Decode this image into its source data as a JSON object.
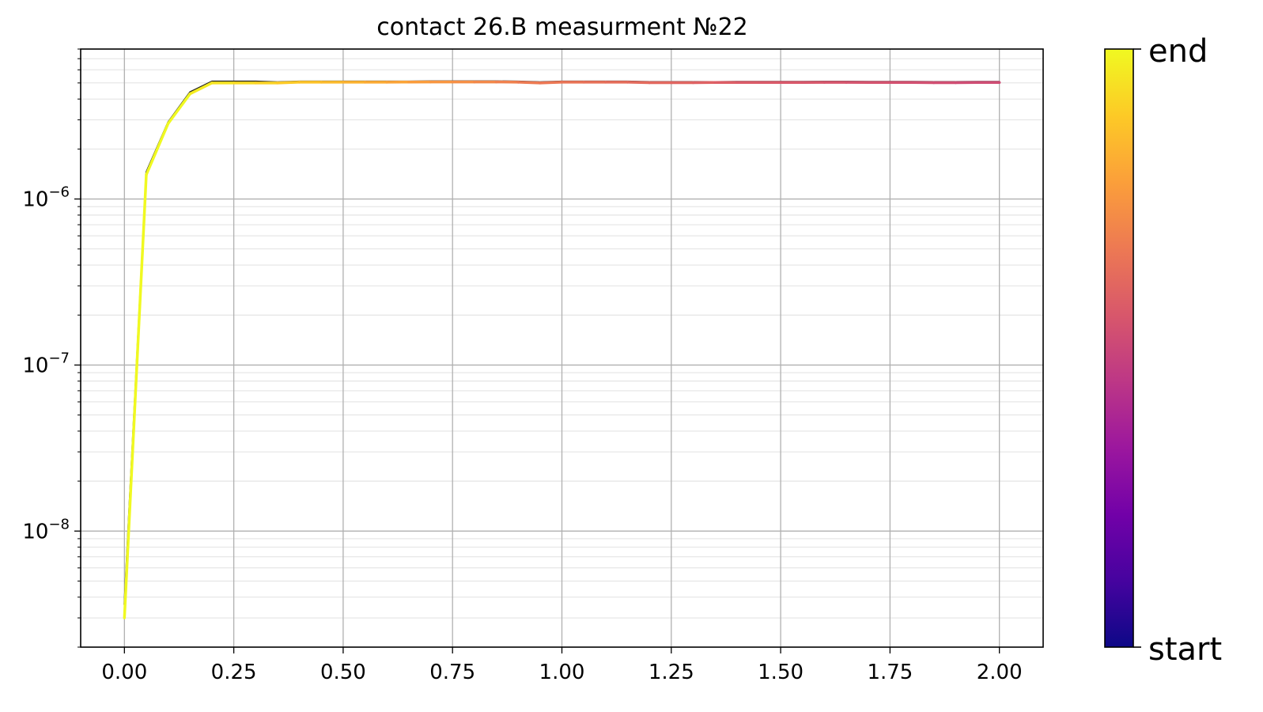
{
  "chart_data": {
    "type": "line",
    "title": "contact 26.B measurment №22",
    "xlabel": "",
    "ylabel": "",
    "xlim": [
      -0.1,
      2.1
    ],
    "ylim": [
      2e-09,
      8e-06
    ],
    "yscale": "log",
    "grid": true,
    "x_ticks": [
      "0.00",
      "0.25",
      "0.50",
      "0.75",
      "1.00",
      "1.25",
      "1.50",
      "1.75",
      "2.00"
    ],
    "y_ticks": [
      {
        "base": "10",
        "exp": "−8",
        "value": 1e-08
      },
      {
        "base": "10",
        "exp": "−7",
        "value": 1e-07
      },
      {
        "base": "10",
        "exp": "−6",
        "value": 1e-06
      }
    ],
    "colorbar": {
      "colormap": "plasma",
      "top_label": "end",
      "bottom_label": "start",
      "stops": [
        "#0d0887",
        "#46039f",
        "#7201a8",
        "#9c179e",
        "#bd3786",
        "#d8576b",
        "#ed7953",
        "#fb9f3a",
        "#fdca26",
        "#f0f921"
      ]
    },
    "series": [
      {
        "role": "start-to-end sweep (shadow)",
        "color": "#222222",
        "x": [
          0.0,
          0.05,
          0.1,
          0.15,
          0.2,
          0.25,
          0.3,
          0.35,
          0.4,
          0.45,
          0.5,
          0.55,
          0.6,
          0.65,
          0.7,
          0.75,
          0.8,
          0.85,
          0.9,
          0.95,
          1.0,
          1.05,
          1.1,
          1.15,
          1.2,
          1.25,
          1.3,
          1.35,
          1.4,
          1.45,
          1.5,
          1.55,
          1.6,
          1.65,
          1.7,
          1.75,
          1.8,
          1.85,
          1.9,
          1.95,
          2.0
        ],
        "y": [
          3.6e-09,
          1.45e-06,
          2.9e-06,
          4.4e-06,
          5.1e-06,
          5.1e-06,
          5.1e-06,
          5.05e-06,
          5.1e-06,
          5.1e-06,
          5.1e-06,
          5.1e-06,
          5.1e-06,
          5.1e-06,
          5.12e-06,
          5.12e-06,
          5.12e-06,
          5.12e-06,
          5.1e-06,
          5.05e-06,
          5.1e-06,
          5.1e-06,
          5.1e-06,
          5.1e-06,
          5.07e-06,
          5.07e-06,
          5.07e-06,
          5.07e-06,
          5.08e-06,
          5.08e-06,
          5.08e-06,
          5.08e-06,
          5.09e-06,
          5.09e-06,
          5.08e-06,
          5.08e-06,
          5.08e-06,
          5.07e-06,
          5.07e-06,
          5.08e-06,
          5.08e-06
        ]
      },
      {
        "role": "coloured sweep",
        "color": "colormap",
        "x": [
          0.0,
          0.05,
          0.1,
          0.15,
          0.2,
          0.25,
          0.3,
          0.35,
          0.4,
          0.45,
          0.5,
          0.55,
          0.6,
          0.65,
          0.7,
          0.75,
          0.8,
          0.85,
          0.9,
          0.95,
          1.0,
          1.05,
          1.1,
          1.15,
          1.2,
          1.25,
          1.3,
          1.35,
          1.4,
          1.45,
          1.5,
          1.55,
          1.6,
          1.65,
          1.7,
          1.75,
          1.8,
          1.85,
          1.9,
          1.95,
          2.0
        ],
        "y": [
          3e-09,
          1.4e-06,
          2.85e-06,
          4.3e-06,
          5e-06,
          5e-06,
          5e-06,
          5e-06,
          5.05e-06,
          5.05e-06,
          5.05e-06,
          5.05e-06,
          5.05e-06,
          5.06e-06,
          5.07e-06,
          5.07e-06,
          5.07e-06,
          5.07e-06,
          5.05e-06,
          5e-06,
          5.05e-06,
          5.05e-06,
          5.05e-06,
          5.05e-06,
          5.02e-06,
          5.02e-06,
          5.02e-06,
          5.03e-06,
          5.03e-06,
          5.03e-06,
          5.03e-06,
          5.03e-06,
          5.04e-06,
          5.04e-06,
          5.03e-06,
          5.03e-06,
          5.03e-06,
          5.02e-06,
          5.02e-06,
          5.03e-06,
          5.03e-06
        ],
        "color_fraction": [
          1.0,
          1.0,
          1.0,
          1.0,
          0.97,
          0.95,
          0.93,
          0.91,
          0.89,
          0.87,
          0.85,
          0.83,
          0.81,
          0.79,
          0.77,
          0.75,
          0.73,
          0.71,
          0.69,
          0.67,
          0.66,
          0.65,
          0.64,
          0.63,
          0.62,
          0.61,
          0.6,
          0.59,
          0.58,
          0.57,
          0.565,
          0.56,
          0.555,
          0.55,
          0.545,
          0.54,
          0.535,
          0.53,
          0.525,
          0.52,
          0.52
        ]
      }
    ]
  }
}
